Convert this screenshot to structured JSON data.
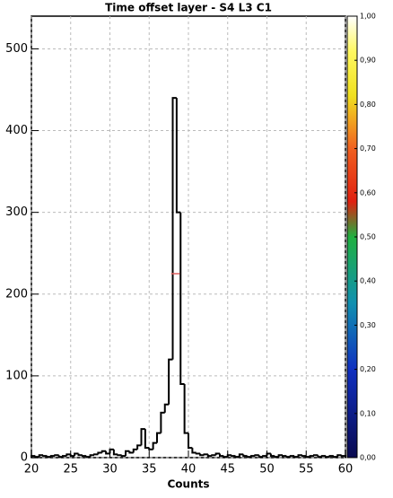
{
  "chart_data": {
    "type": "histogram",
    "title": "Time offset layer - S4 L3 C1",
    "x_label": "Counts",
    "bins": [
      20,
      20.5,
      21,
      21.5,
      22,
      22.5,
      23,
      23.5,
      24,
      24.5,
      25,
      25.5,
      26,
      26.5,
      27,
      27.5,
      28,
      28.5,
      29,
      29.5,
      30,
      30.5,
      31,
      31.5,
      32,
      32.5,
      33,
      33.5,
      34,
      34.5,
      35,
      35.5,
      36,
      36.5,
      37,
      37.5,
      38,
      38.5,
      39,
      39.5,
      40,
      40.5,
      41,
      41.5,
      42,
      42.5,
      43,
      43.5,
      44,
      44.5,
      45,
      45.5,
      46,
      46.5,
      47,
      47.5,
      48,
      48.5,
      49,
      49.5,
      50,
      50.5,
      51,
      51.5,
      52,
      52.5,
      53,
      53.5,
      54,
      54.5,
      55,
      55.5,
      56,
      56.5,
      57,
      57.5,
      58,
      58.5,
      59,
      59.5,
      60
    ],
    "counts": [
      2,
      1,
      3,
      2,
      1,
      2,
      3,
      1,
      2,
      4,
      2,
      5,
      3,
      2,
      1,
      3,
      4,
      6,
      8,
      5,
      10,
      4,
      3,
      2,
      8,
      6,
      10,
      15,
      35,
      12,
      10,
      18,
      30,
      55,
      65,
      120,
      440,
      300,
      90,
      30,
      12,
      6,
      5,
      3,
      4,
      2,
      3,
      5,
      2,
      1,
      3,
      2,
      1,
      4,
      2,
      1,
      2,
      3,
      1,
      2,
      5,
      2,
      1,
      3,
      2,
      1,
      2,
      1,
      3,
      2,
      1,
      2,
      3,
      1,
      2,
      1,
      2,
      1,
      3,
      2
    ],
    "color": "#000000",
    "half_max_line": {
      "y": 225,
      "x": [
        37.8,
        38.9
      ],
      "color": "#e06060"
    },
    "xlim": [
      20,
      60
    ],
    "xticks": [
      20,
      25,
      30,
      35,
      40,
      45,
      50,
      55,
      60
    ],
    "ylim": [
      0,
      540
    ],
    "yticks": [
      0,
      100,
      200,
      300,
      400,
      500
    ],
    "grid": true,
    "colorbar": {
      "zlim": [
        0,
        1
      ],
      "ticks": [
        {
          "value": 0,
          "label": "0,00"
        },
        {
          "value": 0.1,
          "label": "0,10"
        },
        {
          "value": 0.2,
          "label": "0,20"
        },
        {
          "value": 0.3,
          "label": "0,30"
        },
        {
          "value": 0.4,
          "label": "0,40"
        },
        {
          "value": 0.5,
          "label": "0,50"
        },
        {
          "value": 0.6,
          "label": "0,60"
        },
        {
          "value": 0.7,
          "label": "0,70"
        },
        {
          "value": 0.8,
          "label": "0,80"
        },
        {
          "value": 0.9,
          "label": "0,90"
        },
        {
          "value": 1,
          "label": "1,00"
        }
      ]
    }
  }
}
